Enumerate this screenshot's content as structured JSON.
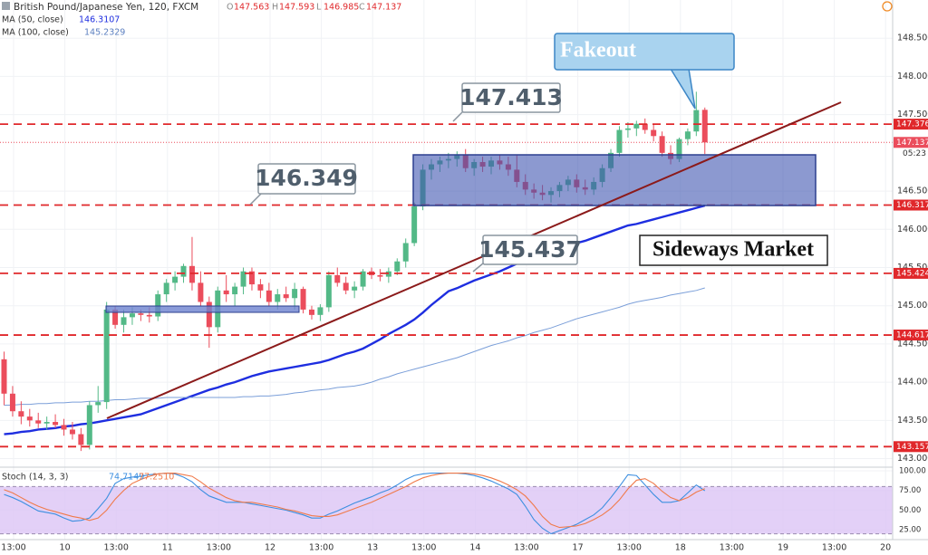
{
  "chart_data": [
    {
      "type": "candlestick",
      "title": "British Pound/Japanese Yen, 120, FXCM",
      "ohlc_labels": [
        "O",
        "H",
        "L",
        "C"
      ],
      "up_color": "#53b987",
      "down_color": "#eb4d5c",
      "ylim": [
        142.9,
        149.0
      ],
      "yticks": [
        {
          "value": 143,
          "label": "143.000"
        },
        {
          "value": 143.5,
          "label": "143.500"
        },
        {
          "value": 144,
          "label": "144.000"
        },
        {
          "value": 144.5,
          "label": "144.500"
        },
        {
          "value": 145,
          "label": "145.000"
        },
        {
          "value": 145.5,
          "label": "145.500"
        },
        {
          "value": 146,
          "label": "146.000"
        },
        {
          "value": 146.5,
          "label": "146.500"
        },
        {
          "value": 147.5,
          "label": "147.500"
        },
        {
          "value": 148,
          "label": "148.000"
        },
        {
          "value": 148.5,
          "label": "148.500"
        }
      ],
      "grid": true,
      "x_labels": [
        "13:00",
        "10",
        "13:00",
        "11",
        "13:00",
        "12",
        "13:00",
        "13",
        "13:00",
        "14",
        "13:00",
        "17",
        "13:00",
        "18",
        "13:00",
        "19",
        "13:00",
        "20"
      ],
      "levels": [
        147.376,
        146.317,
        145.424,
        144.617,
        143.157
      ],
      "level_color": "#e0282b",
      "countdown": "05:23",
      "ohlc": [
        [
          144.3,
          144.4,
          143.7,
          143.85
        ],
        [
          143.85,
          143.95,
          143.55,
          143.62
        ],
        [
          143.62,
          143.75,
          143.45,
          143.55
        ],
        [
          143.55,
          143.65,
          143.42,
          143.5
        ],
        [
          143.5,
          143.6,
          143.4,
          143.46
        ],
        [
          143.46,
          143.55,
          143.38,
          143.48
        ],
        [
          143.48,
          143.58,
          143.4,
          143.44
        ],
        [
          143.44,
          143.52,
          143.3,
          143.38
        ],
        [
          143.38,
          143.48,
          143.25,
          143.32
        ],
        [
          143.32,
          143.4,
          143.1,
          143.18
        ],
        [
          143.18,
          143.75,
          143.12,
          143.7
        ],
        [
          143.7,
          143.95,
          143.6,
          143.74
        ],
        [
          143.74,
          145.05,
          143.65,
          144.95
        ],
        [
          144.95,
          145.0,
          144.7,
          144.75
        ],
        [
          144.75,
          144.95,
          144.65,
          144.85
        ],
        [
          144.85,
          144.98,
          144.75,
          144.9
        ],
        [
          144.9,
          144.95,
          144.8,
          144.88
        ],
        [
          144.88,
          144.98,
          144.78,
          144.86
        ],
        [
          144.86,
          145.2,
          144.8,
          145.15
        ],
        [
          145.15,
          145.35,
          145.05,
          145.3
        ],
        [
          145.3,
          145.45,
          145.2,
          145.38
        ],
        [
          145.38,
          145.55,
          145.3,
          145.52
        ],
        [
          145.52,
          145.9,
          145.2,
          145.3
        ],
        [
          145.3,
          145.45,
          145.0,
          145.05
        ],
        [
          145.05,
          145.12,
          144.45,
          144.72
        ],
        [
          144.72,
          145.25,
          144.65,
          145.2
        ],
        [
          145.2,
          145.4,
          145.05,
          145.15
        ],
        [
          145.15,
          145.3,
          145.0,
          145.25
        ],
        [
          145.25,
          145.5,
          145.15,
          145.45
        ],
        [
          145.45,
          145.5,
          145.2,
          145.28
        ],
        [
          145.28,
          145.35,
          145.1,
          145.2
        ],
        [
          145.2,
          145.3,
          145.0,
          145.05
        ],
        [
          145.05,
          145.22,
          144.95,
          145.15
        ],
        [
          145.15,
          145.25,
          145.05,
          145.1
        ],
        [
          145.1,
          145.3,
          144.95,
          145.22
        ],
        [
          145.22,
          145.25,
          144.9,
          144.95
        ],
        [
          144.95,
          145.0,
          144.82,
          144.88
        ],
        [
          144.88,
          145.02,
          144.8,
          144.98
        ],
        [
          144.98,
          145.45,
          144.92,
          145.4
        ],
        [
          145.4,
          145.5,
          145.25,
          145.3
        ],
        [
          145.3,
          145.38,
          145.15,
          145.2
        ],
        [
          145.2,
          145.32,
          145.1,
          145.25
        ],
        [
          145.25,
          145.48,
          145.2,
          145.45
        ],
        [
          145.45,
          145.5,
          145.35,
          145.4
        ],
        [
          145.4,
          145.48,
          145.32,
          145.38
        ],
        [
          145.38,
          145.5,
          145.3,
          145.45
        ],
        [
          145.45,
          145.62,
          145.4,
          145.58
        ],
        [
          145.58,
          145.88,
          145.5,
          145.82
        ],
        [
          145.82,
          146.35,
          145.78,
          146.3
        ],
        [
          146.3,
          146.85,
          146.25,
          146.78
        ],
        [
          146.78,
          146.92,
          146.65,
          146.85
        ],
        [
          146.85,
          146.95,
          146.75,
          146.9
        ],
        [
          146.9,
          147.0,
          146.8,
          146.92
        ],
        [
          146.92,
          147.02,
          146.82,
          146.98
        ],
        [
          146.98,
          147.05,
          146.75,
          146.8
        ],
        [
          146.8,
          146.92,
          146.7,
          146.88
        ],
        [
          146.88,
          146.95,
          146.75,
          146.82
        ],
        [
          146.82,
          146.95,
          146.72,
          146.9
        ],
        [
          146.9,
          146.98,
          146.78,
          146.85
        ],
        [
          146.85,
          146.95,
          146.7,
          146.78
        ],
        [
          146.78,
          146.98,
          146.55,
          146.62
        ],
        [
          146.62,
          146.72,
          146.45,
          146.52
        ],
        [
          146.52,
          146.6,
          146.4,
          146.48
        ],
        [
          146.48,
          146.58,
          146.38,
          146.45
        ],
        [
          146.45,
          146.55,
          146.35,
          146.5
        ],
        [
          146.5,
          146.62,
          146.42,
          146.58
        ],
        [
          146.58,
          146.7,
          146.5,
          146.65
        ],
        [
          146.65,
          146.72,
          146.48,
          146.55
        ],
        [
          146.55,
          146.65,
          146.45,
          146.52
        ],
        [
          146.52,
          146.68,
          146.45,
          146.62
        ],
        [
          146.62,
          146.85,
          146.55,
          146.8
        ],
        [
          146.8,
          147.05,
          146.75,
          147.0
        ],
        [
          147.0,
          147.35,
          146.95,
          147.3
        ],
        [
          147.3,
          147.4,
          147.2,
          147.32
        ],
        [
          147.32,
          147.42,
          147.22,
          147.38
        ],
        [
          147.38,
          147.45,
          147.25,
          147.3
        ],
        [
          147.3,
          147.38,
          147.15,
          147.22
        ],
        [
          147.22,
          147.28,
          146.95,
          147.0
        ],
        [
          147.0,
          147.1,
          146.85,
          146.92
        ],
        [
          146.92,
          147.2,
          146.88,
          147.18
        ],
        [
          147.18,
          147.32,
          147.1,
          147.28
        ],
        [
          147.28,
          147.8,
          147.22,
          147.56
        ],
        [
          147.563,
          147.593,
          146.985,
          147.137
        ]
      ],
      "series": [
        {
          "name": "MA (50, close)",
          "color": "#1e2ee0",
          "values": [
            143.32,
            143.33,
            143.35,
            143.36,
            143.38,
            143.39,
            143.4,
            143.42,
            143.43,
            143.45,
            143.46,
            143.48,
            143.5,
            143.52,
            143.54,
            143.56,
            143.58,
            143.62,
            143.66,
            143.7,
            143.74,
            143.78,
            143.82,
            143.86,
            143.9,
            143.93,
            143.97,
            144.0,
            144.04,
            144.08,
            144.11,
            144.14,
            144.16,
            144.18,
            144.2,
            144.22,
            144.24,
            144.26,
            144.29,
            144.33,
            144.37,
            144.4,
            144.44,
            144.5,
            144.56,
            144.63,
            144.69,
            144.75,
            144.82,
            144.91,
            145.01,
            145.1,
            145.19,
            145.23,
            145.28,
            145.33,
            145.37,
            145.41,
            145.45,
            145.5,
            145.55,
            145.6,
            145.64,
            145.68,
            145.71,
            145.75,
            145.79,
            145.82,
            145.85,
            145.89,
            145.93,
            145.97,
            146.01,
            146.05,
            146.07,
            146.1,
            146.13,
            146.16,
            146.19,
            146.22,
            146.25,
            146.28,
            146.3107
          ]
        },
        {
          "name": "MA (100, close)",
          "color": "#7b9fd9",
          "values": [
            143.7,
            143.7,
            143.71,
            143.71,
            143.72,
            143.72,
            143.73,
            143.73,
            143.74,
            143.74,
            143.75,
            143.75,
            143.76,
            143.77,
            143.77,
            143.78,
            143.79,
            143.79,
            143.79,
            143.8,
            143.8,
            143.8,
            143.8,
            143.8,
            143.8,
            143.8,
            143.8,
            143.8,
            143.81,
            143.81,
            143.82,
            143.82,
            143.83,
            143.84,
            143.86,
            143.87,
            143.89,
            143.9,
            143.91,
            143.93,
            143.94,
            143.95,
            143.97,
            144.0,
            144.04,
            144.07,
            144.11,
            144.14,
            144.17,
            144.2,
            144.23,
            144.26,
            144.29,
            144.32,
            144.36,
            144.4,
            144.44,
            144.48,
            144.51,
            144.54,
            144.58,
            144.61,
            144.65,
            144.68,
            144.71,
            144.75,
            144.79,
            144.83,
            144.86,
            144.89,
            144.92,
            144.95,
            144.98,
            145.02,
            145.05,
            145.07,
            145.09,
            145.11,
            145.14,
            145.16,
            145.18,
            145.2,
            145.2329
          ]
        }
      ],
      "annotations": [
        "Fakeout",
        "147.413",
        "146.349",
        "145.437",
        "Sideways Market"
      ]
    },
    {
      "type": "stochastic",
      "name": "Stoch (14, 3, 3)",
      "ylim": [
        12.6,
        104.6
      ],
      "yticks": [
        {
          "value": 100,
          "label": "100.00"
        },
        {
          "value": 75,
          "label": "75.00"
        },
        {
          "value": 50,
          "label": "50.00"
        },
        {
          "value": 25,
          "label": "25.00"
        }
      ],
      "band": [
        20,
        80
      ],
      "band_color": "#dcc4f5",
      "series": [
        {
          "color": "#3d8fe0",
          "last_value_label": "74.7149",
          "values": [
            70,
            66,
            61,
            55,
            49,
            47,
            45,
            40,
            36,
            37,
            40,
            52,
            65,
            84,
            90,
            92,
            93,
            95,
            96,
            97,
            96,
            92,
            86,
            76,
            68,
            64,
            60,
            60,
            60,
            58,
            56,
            54,
            52,
            50,
            47,
            44,
            40,
            40,
            45,
            49,
            54,
            59,
            63,
            67,
            72,
            76,
            82,
            89,
            94,
            96,
            97,
            97,
            97,
            97,
            96,
            94,
            91,
            87,
            82,
            77,
            70,
            55,
            38,
            27,
            20,
            24,
            28,
            32,
            38,
            44,
            53,
            66,
            80,
            95,
            94,
            82,
            70,
            60,
            60,
            62,
            72,
            82,
            74.7149
          ]
        },
        {
          "color": "#f07a4a",
          "last_value_label": "77.2510",
          "values": [
            76,
            72,
            66,
            60,
            55,
            51,
            48,
            45,
            42,
            40,
            37,
            40,
            50,
            64,
            75,
            84,
            89,
            93,
            96,
            97,
            97,
            95,
            93,
            86,
            78,
            72,
            66,
            62,
            60,
            60,
            58,
            56,
            54,
            51,
            49,
            46,
            43,
            42,
            42,
            44,
            48,
            52,
            56,
            60,
            65,
            70,
            75,
            80,
            86,
            91,
            94,
            96,
            97,
            97,
            97,
            96,
            94,
            91,
            87,
            82,
            76,
            68,
            56,
            42,
            32,
            28,
            29,
            30,
            33,
            38,
            44,
            52,
            63,
            77,
            88,
            90,
            84,
            74,
            66,
            62,
            66,
            73,
            77.251
          ]
        }
      ]
    }
  ]
}
